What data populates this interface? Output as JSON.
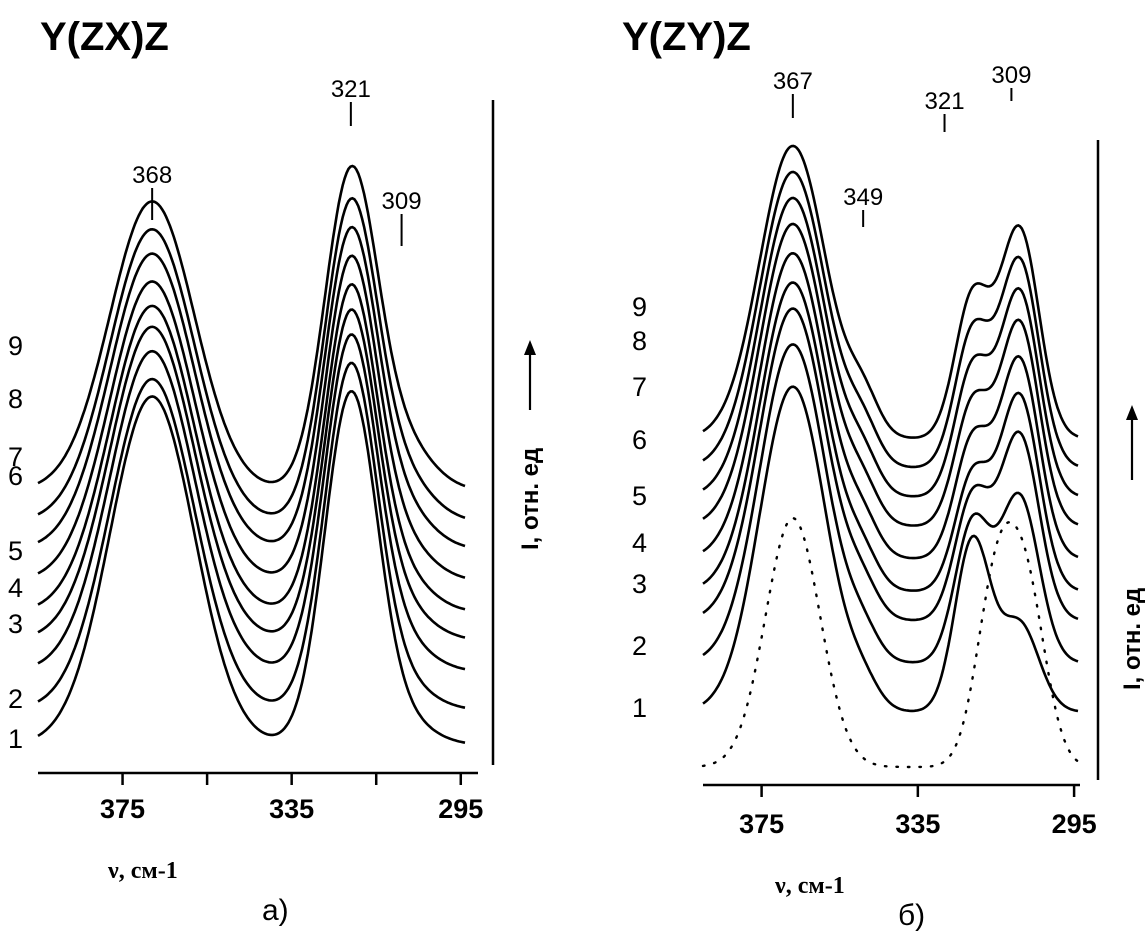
{
  "chart_data": [
    {
      "type": "line",
      "panel_label": "а)",
      "title": "Y(ZX)Z",
      "xlabel": "ν, см-1",
      "ylabel": "I, отн. ед",
      "ylabel_arrow": "→",
      "xlim": [
        395,
        294
      ],
      "x_ticks": [
        375,
        335,
        295
      ],
      "curve_labels": [
        "1",
        "2",
        "3",
        "4",
        "5",
        "6",
        "7",
        "8",
        "9"
      ],
      "peak_labels": [
        {
          "text": "368",
          "x": 368
        },
        {
          "text": "321",
          "x": 321
        },
        {
          "text": "309",
          "x": 309
        }
      ],
      "peaks": [
        {
          "x": 368,
          "w": 10,
          "amp": 1.0
        },
        {
          "x": 321,
          "w": 6.2,
          "amp": 1.0
        },
        {
          "x": 309,
          "w": 7,
          "amp": 0.22
        }
      ],
      "series": [
        {
          "offset": 0.0,
          "peak_scale": [
            1.0,
            1.0,
            0.3
          ]
        },
        {
          "offset": 0.1,
          "peak_scale": [
            0.95,
            0.98,
            0.32
          ]
        },
        {
          "offset": 0.21,
          "peak_scale": [
            0.92,
            0.95,
            0.35
          ]
        },
        {
          "offset": 0.3,
          "peak_scale": [
            0.9,
            0.93,
            0.38
          ]
        },
        {
          "offset": 0.38,
          "peak_scale": [
            0.88,
            0.92,
            0.42
          ]
        },
        {
          "offset": 0.47,
          "peak_scale": [
            0.86,
            0.91,
            0.46
          ]
        },
        {
          "offset": 0.56,
          "peak_scale": [
            0.85,
            0.9,
            0.5
          ]
        },
        {
          "offset": 0.64,
          "peak_scale": [
            0.84,
            0.9,
            0.55
          ]
        },
        {
          "offset": 0.73,
          "peak_scale": [
            0.83,
            0.9,
            0.6
          ]
        }
      ]
    },
    {
      "type": "line",
      "panel_label": "б)",
      "title": "Y(ZY)Z",
      "xlabel": "ν, см-1",
      "ylabel": "I, отн. ед",
      "ylabel_arrow": "→",
      "xlim": [
        390,
        294
      ],
      "x_ticks": [
        375,
        335,
        295
      ],
      "curve_labels": [
        "1",
        "2",
        "3",
        "4",
        "5",
        "6",
        "7",
        "8",
        "9"
      ],
      "peak_labels": [
        {
          "text": "367",
          "x": 367
        },
        {
          "text": "349",
          "x": 349
        },
        {
          "text": "321",
          "x": 321
        },
        {
          "text": "309",
          "x": 309
        }
      ],
      "peaks": [
        {
          "x": 367,
          "w": 8.5,
          "amp": 1.0
        },
        {
          "x": 349,
          "w": 4,
          "amp": 0.25
        },
        {
          "x": 321,
          "w": 4.5,
          "amp": 0.5
        },
        {
          "x": 309,
          "w": 5,
          "amp": 0.6
        }
      ],
      "series": [
        {
          "offset": 0.0,
          "peak_scale": [
            1.0,
            0.25,
            1.05,
            0.45
          ]
        },
        {
          "offset": 0.15,
          "peak_scale": [
            0.98,
            0.28,
            0.85,
            0.85
          ]
        },
        {
          "offset": 0.28,
          "peak_scale": [
            0.96,
            0.3,
            0.75,
            0.95
          ]
        },
        {
          "offset": 0.37,
          "peak_scale": [
            0.95,
            0.32,
            0.7,
            1.0
          ]
        },
        {
          "offset": 0.47,
          "peak_scale": [
            0.94,
            0.34,
            0.72,
            1.02
          ]
        },
        {
          "offset": 0.57,
          "peak_scale": [
            0.93,
            0.36,
            0.74,
            1.04
          ]
        },
        {
          "offset": 0.66,
          "peak_scale": [
            0.92,
            0.38,
            0.78,
            1.05
          ]
        },
        {
          "offset": 0.75,
          "peak_scale": [
            0.91,
            0.4,
            0.82,
            1.06
          ]
        },
        {
          "offset": 0.84,
          "peak_scale": [
            0.9,
            0.42,
            0.86,
            1.07
          ]
        }
      ],
      "reference": {
        "style": "dotted",
        "peaks": [
          {
            "x": 367,
            "w": 7,
            "amp": 0.85
          },
          {
            "x": 315,
            "w": 5,
            "amp": 0.6
          },
          {
            "x": 307,
            "w": 5,
            "amp": 0.55
          }
        ]
      }
    }
  ]
}
